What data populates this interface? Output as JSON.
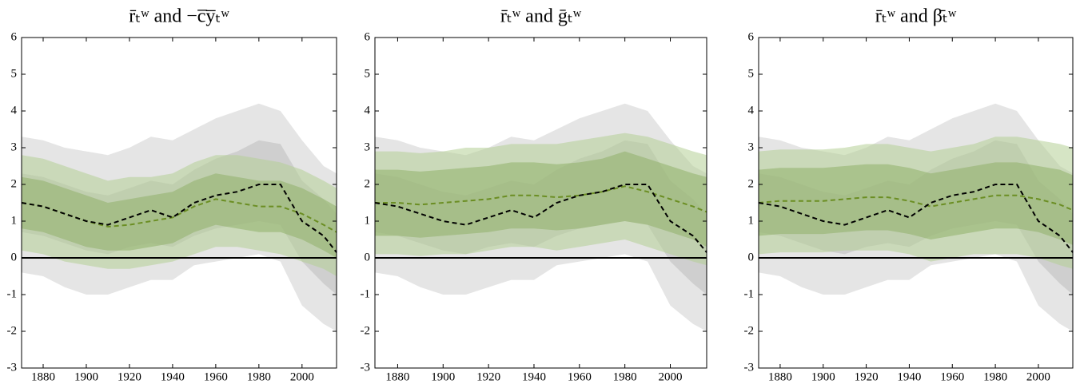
{
  "chart_data": [
    {
      "type": "line",
      "title": "r̄ₜʷ and −c̅y̅ₜʷ",
      "x": [
        1870,
        1880,
        1890,
        1900,
        1910,
        1920,
        1930,
        1940,
        1950,
        1960,
        1970,
        1980,
        1990,
        2000,
        2010,
        2016
      ],
      "xlim": [
        1870,
        2016
      ],
      "xticks": [
        1880,
        1900,
        1920,
        1940,
        1960,
        1980,
        2000
      ],
      "ylim": [
        -3,
        6
      ],
      "yticks": [
        -3,
        -2,
        -1,
        0,
        1,
        2,
        3,
        4,
        5,
        6
      ],
      "bands": [
        {
          "color": "#cfcfcf",
          "lower": [
            -0.4,
            -0.5,
            -0.8,
            -1.0,
            -1.0,
            -0.8,
            -0.6,
            -0.6,
            -0.2,
            -0.1,
            0.0,
            0.1,
            -0.1,
            -1.3,
            -1.8,
            -2.0
          ],
          "upper": [
            3.3,
            3.2,
            3.0,
            2.9,
            2.8,
            3.0,
            3.3,
            3.2,
            3.5,
            3.8,
            4.0,
            4.2,
            4.0,
            3.2,
            2.5,
            2.3
          ]
        },
        {
          "color": "#bdbdbd",
          "lower": [
            0.7,
            0.6,
            0.4,
            0.2,
            0.1,
            0.3,
            0.4,
            0.3,
            0.6,
            0.8,
            0.9,
            1.0,
            0.9,
            -0.1,
            -0.7,
            -1.0
          ],
          "upper": [
            2.3,
            2.2,
            2.0,
            1.8,
            1.7,
            1.9,
            2.1,
            2.0,
            2.4,
            2.7,
            2.9,
            3.2,
            3.1,
            2.1,
            1.6,
            1.2
          ]
        },
        {
          "color": "#b5cf95",
          "lower": [
            0.2,
            0.1,
            -0.1,
            -0.2,
            -0.3,
            -0.3,
            -0.2,
            -0.1,
            0.1,
            0.3,
            0.3,
            0.2,
            0.1,
            -0.1,
            -0.3,
            -0.5
          ],
          "upper": [
            2.8,
            2.7,
            2.5,
            2.3,
            2.1,
            2.2,
            2.2,
            2.3,
            2.6,
            2.8,
            2.8,
            2.7,
            2.6,
            2.4,
            2.1,
            1.9
          ]
        },
        {
          "color": "#8fb06a",
          "lower": [
            0.8,
            0.7,
            0.5,
            0.3,
            0.2,
            0.2,
            0.3,
            0.4,
            0.7,
            0.9,
            0.8,
            0.7,
            0.7,
            0.5,
            0.2,
            0.0
          ],
          "upper": [
            2.2,
            2.1,
            1.9,
            1.7,
            1.5,
            1.6,
            1.7,
            1.8,
            2.1,
            2.3,
            2.2,
            2.1,
            2.1,
            1.9,
            1.6,
            1.4
          ]
        }
      ],
      "series": [
        {
          "color": "#6b8e23",
          "values": [
            1.5,
            1.4,
            1.2,
            1.0,
            0.85,
            0.9,
            1.0,
            1.1,
            1.4,
            1.6,
            1.5,
            1.4,
            1.4,
            1.2,
            0.9,
            0.7
          ]
        },
        {
          "color": "#000000",
          "values": [
            1.5,
            1.4,
            1.2,
            1.0,
            0.9,
            1.1,
            1.3,
            1.1,
            1.5,
            1.7,
            1.8,
            2.0,
            2.0,
            1.0,
            0.6,
            0.15
          ]
        }
      ]
    },
    {
      "type": "line",
      "title": "r̄ₜʷ and ḡₜʷ",
      "x": [
        1870,
        1880,
        1890,
        1900,
        1910,
        1920,
        1930,
        1940,
        1950,
        1960,
        1970,
        1980,
        1990,
        2000,
        2010,
        2016
      ],
      "xlim": [
        1870,
        2016
      ],
      "xticks": [
        1880,
        1900,
        1920,
        1940,
        1960,
        1980,
        2000
      ],
      "ylim": [
        -3,
        6
      ],
      "yticks": [
        -3,
        -2,
        -1,
        0,
        1,
        2,
        3,
        4,
        5,
        6
      ],
      "bands": [
        {
          "color": "#cfcfcf",
          "lower": [
            -0.4,
            -0.5,
            -0.8,
            -1.0,
            -1.0,
            -0.8,
            -0.6,
            -0.6,
            -0.2,
            -0.1,
            0.0,
            0.1,
            -0.1,
            -1.3,
            -1.8,
            -2.0
          ],
          "upper": [
            3.3,
            3.2,
            3.0,
            2.9,
            2.8,
            3.0,
            3.3,
            3.2,
            3.5,
            3.8,
            4.0,
            4.2,
            4.0,
            3.2,
            2.5,
            2.3
          ]
        },
        {
          "color": "#bdbdbd",
          "lower": [
            0.7,
            0.6,
            0.4,
            0.2,
            0.1,
            0.3,
            0.4,
            0.3,
            0.6,
            0.8,
            0.9,
            1.0,
            0.9,
            -0.1,
            -0.7,
            -1.0
          ],
          "upper": [
            2.3,
            2.2,
            2.0,
            1.8,
            1.7,
            1.9,
            2.1,
            2.0,
            2.4,
            2.7,
            2.9,
            3.2,
            3.1,
            2.1,
            1.6,
            1.2
          ]
        },
        {
          "color": "#b5cf95",
          "lower": [
            0.1,
            0.1,
            0.05,
            0.1,
            0.1,
            0.2,
            0.3,
            0.3,
            0.2,
            0.3,
            0.4,
            0.5,
            0.3,
            0.1,
            -0.1,
            -0.2
          ],
          "upper": [
            2.9,
            2.9,
            2.85,
            2.9,
            3.0,
            3.0,
            3.1,
            3.1,
            3.1,
            3.2,
            3.3,
            3.4,
            3.3,
            3.1,
            2.9,
            2.8
          ]
        },
        {
          "color": "#8fb06a",
          "lower": [
            0.6,
            0.6,
            0.55,
            0.6,
            0.65,
            0.7,
            0.8,
            0.8,
            0.75,
            0.8,
            0.9,
            1.0,
            0.9,
            0.7,
            0.5,
            0.3
          ],
          "upper": [
            2.4,
            2.4,
            2.35,
            2.4,
            2.45,
            2.5,
            2.6,
            2.6,
            2.55,
            2.6,
            2.7,
            2.9,
            2.7,
            2.5,
            2.3,
            2.2
          ]
        }
      ],
      "series": [
        {
          "color": "#6b8e23",
          "values": [
            1.5,
            1.5,
            1.45,
            1.5,
            1.55,
            1.6,
            1.7,
            1.7,
            1.65,
            1.7,
            1.8,
            1.95,
            1.8,
            1.6,
            1.4,
            1.25
          ]
        },
        {
          "color": "#000000",
          "values": [
            1.5,
            1.4,
            1.2,
            1.0,
            0.9,
            1.1,
            1.3,
            1.1,
            1.5,
            1.7,
            1.8,
            2.0,
            2.0,
            1.0,
            0.6,
            0.15
          ]
        }
      ]
    },
    {
      "type": "line",
      "title": "r̄ₜʷ and β̄ₜʷ",
      "x": [
        1870,
        1880,
        1890,
        1900,
        1910,
        1920,
        1930,
        1940,
        1950,
        1960,
        1970,
        1980,
        1990,
        2000,
        2010,
        2016
      ],
      "xlim": [
        1870,
        2016
      ],
      "xticks": [
        1880,
        1900,
        1920,
        1940,
        1960,
        1980,
        2000
      ],
      "ylim": [
        -3,
        6
      ],
      "yticks": [
        -3,
        -2,
        -1,
        0,
        1,
        2,
        3,
        4,
        5,
        6
      ],
      "bands": [
        {
          "color": "#cfcfcf",
          "lower": [
            -0.4,
            -0.5,
            -0.8,
            -1.0,
            -1.0,
            -0.8,
            -0.6,
            -0.6,
            -0.2,
            -0.1,
            0.0,
            0.1,
            -0.1,
            -1.3,
            -1.8,
            -2.0
          ],
          "upper": [
            3.3,
            3.2,
            3.0,
            2.9,
            2.8,
            3.0,
            3.3,
            3.2,
            3.5,
            3.8,
            4.0,
            4.2,
            4.0,
            3.2,
            2.5,
            2.3
          ]
        },
        {
          "color": "#bdbdbd",
          "lower": [
            0.7,
            0.6,
            0.4,
            0.2,
            0.1,
            0.3,
            0.4,
            0.3,
            0.6,
            0.8,
            0.9,
            1.0,
            0.9,
            -0.1,
            -0.7,
            -1.0
          ],
          "upper": [
            2.3,
            2.2,
            2.0,
            1.8,
            1.7,
            1.9,
            2.1,
            2.0,
            2.4,
            2.7,
            2.9,
            3.2,
            3.1,
            2.1,
            1.6,
            1.2
          ]
        },
        {
          "color": "#b5cf95",
          "lower": [
            0.1,
            0.15,
            0.15,
            0.15,
            0.2,
            0.2,
            0.2,
            0.1,
            -0.1,
            0.0,
            0.1,
            0.1,
            0.1,
            0.0,
            -0.2,
            -0.3
          ],
          "upper": [
            2.9,
            2.95,
            2.95,
            2.95,
            3.0,
            3.1,
            3.1,
            3.0,
            2.9,
            3.0,
            3.1,
            3.3,
            3.3,
            3.2,
            3.1,
            3.0
          ]
        },
        {
          "color": "#8fb06a",
          "lower": [
            0.6,
            0.65,
            0.65,
            0.65,
            0.7,
            0.75,
            0.75,
            0.65,
            0.5,
            0.6,
            0.7,
            0.8,
            0.8,
            0.7,
            0.5,
            0.35
          ],
          "upper": [
            2.4,
            2.45,
            2.45,
            2.45,
            2.5,
            2.55,
            2.55,
            2.45,
            2.3,
            2.4,
            2.5,
            2.6,
            2.6,
            2.5,
            2.4,
            2.25
          ]
        }
      ],
      "series": [
        {
          "color": "#6b8e23",
          "values": [
            1.5,
            1.55,
            1.55,
            1.55,
            1.6,
            1.65,
            1.65,
            1.55,
            1.4,
            1.5,
            1.6,
            1.7,
            1.7,
            1.6,
            1.45,
            1.3
          ]
        },
        {
          "color": "#000000",
          "values": [
            1.5,
            1.4,
            1.2,
            1.0,
            0.9,
            1.1,
            1.3,
            1.1,
            1.5,
            1.7,
            1.8,
            2.0,
            2.0,
            1.0,
            0.6,
            0.15
          ]
        }
      ]
    }
  ]
}
